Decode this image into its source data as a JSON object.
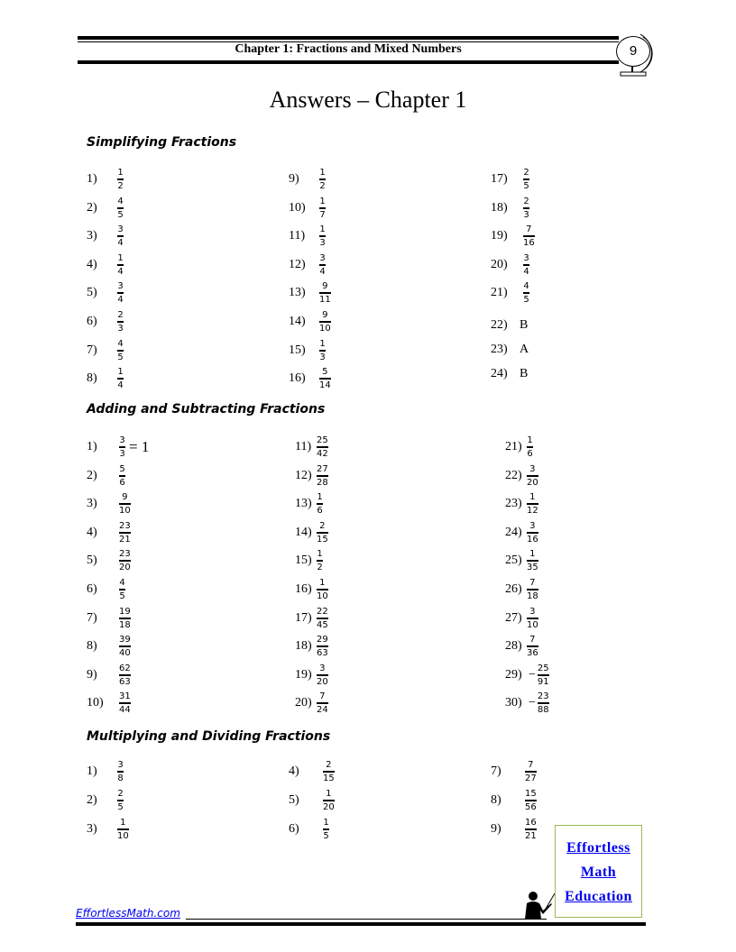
{
  "header": {
    "chapter": "Chapter 1: Fractions and Mixed Numbers",
    "page_number": "9"
  },
  "title": "Answers – Chapter 1",
  "sections": [
    {
      "heading": "Simplifying Fractions",
      "items": [
        {
          "n": "1)",
          "num": "1",
          "den": "2"
        },
        {
          "n": "2)",
          "num": "4",
          "den": "5"
        },
        {
          "n": "3)",
          "num": "3",
          "den": "4"
        },
        {
          "n": "4)",
          "num": "1",
          "den": "4"
        },
        {
          "n": "5)",
          "num": "3",
          "den": "4"
        },
        {
          "n": "6)",
          "num": "2",
          "den": "3"
        },
        {
          "n": "7)",
          "num": "4",
          "den": "5"
        },
        {
          "n": "8)",
          "num": "1",
          "den": "4"
        },
        {
          "n": "9)",
          "num": "1",
          "den": "2"
        },
        {
          "n": "10)",
          "num": "1",
          "den": "7"
        },
        {
          "n": "11)",
          "num": "1",
          "den": "3"
        },
        {
          "n": "12)",
          "num": "3",
          "den": "4"
        },
        {
          "n": "13)",
          "num": "9",
          "den": "11"
        },
        {
          "n": "14)",
          "num": "9",
          "den": "10"
        },
        {
          "n": "15)",
          "num": "1",
          "den": "3"
        },
        {
          "n": "16)",
          "num": "5",
          "den": "14"
        },
        {
          "n": "17)",
          "num": "2",
          "den": "5"
        },
        {
          "n": "18)",
          "num": "2",
          "den": "3"
        },
        {
          "n": "19)",
          "num": "7",
          "den": "16"
        },
        {
          "n": "20)",
          "num": "3",
          "den": "4"
        },
        {
          "n": "21)",
          "num": "4",
          "den": "5"
        },
        {
          "n": "22)",
          "text": "B"
        },
        {
          "n": "23)",
          "text": "A"
        },
        {
          "n": "24)",
          "text": "B"
        }
      ]
    },
    {
      "heading": "Adding and Subtracting Fractions",
      "items": [
        {
          "n": "1)",
          "num": "3",
          "den": "3",
          "suffix": "= 1"
        },
        {
          "n": "2)",
          "num": "5",
          "den": "6"
        },
        {
          "n": "3)",
          "num": "9",
          "den": "10"
        },
        {
          "n": "4)",
          "num": "23",
          "den": "21"
        },
        {
          "n": "5)",
          "num": "23",
          "den": "20"
        },
        {
          "n": "6)",
          "num": "4",
          "den": "5"
        },
        {
          "n": "7)",
          "num": "19",
          "den": "18"
        },
        {
          "n": "8)",
          "num": "39",
          "den": "40"
        },
        {
          "n": "9)",
          "num": "62",
          "den": "63"
        },
        {
          "n": "10)",
          "num": "31",
          "den": "44"
        },
        {
          "n": "11)",
          "num": "25",
          "den": "42"
        },
        {
          "n": "12)",
          "num": "27",
          "den": "28"
        },
        {
          "n": "13)",
          "num": "1",
          "den": "6"
        },
        {
          "n": "14)",
          "num": "2",
          "den": "15"
        },
        {
          "n": "15)",
          "num": "1",
          "den": "2"
        },
        {
          "n": "16)",
          "num": "1",
          "den": "10"
        },
        {
          "n": "17)",
          "num": "22",
          "den": "45"
        },
        {
          "n": "18)",
          "num": "29",
          "den": "63"
        },
        {
          "n": "19)",
          "num": "3",
          "den": "20"
        },
        {
          "n": "20)",
          "num": "7",
          "den": "24"
        },
        {
          "n": "21)",
          "num": "1",
          "den": "6"
        },
        {
          "n": "22)",
          "num": "3",
          "den": "20"
        },
        {
          "n": "23)",
          "num": "1",
          "den": "12"
        },
        {
          "n": "24)",
          "num": "3",
          "den": "16"
        },
        {
          "n": "25)",
          "num": "1",
          "den": "35"
        },
        {
          "n": "26)",
          "num": "7",
          "den": "18"
        },
        {
          "n": "27)",
          "num": "3",
          "den": "10"
        },
        {
          "n": "28)",
          "num": "7",
          "den": "36"
        },
        {
          "n": "29)",
          "neg": "−",
          "num": "25",
          "den": "91"
        },
        {
          "n": "30)",
          "neg": "−",
          "num": "23",
          "den": "88"
        }
      ]
    },
    {
      "heading": "Multiplying and Dividing Fractions",
      "items": [
        {
          "n": "1)",
          "num": "3",
          "den": "8"
        },
        {
          "n": "2)",
          "num": "2",
          "den": "5"
        },
        {
          "n": "3)",
          "num": "1",
          "den": "10"
        },
        {
          "n": "4)",
          "num": "2",
          "den": "15"
        },
        {
          "n": "5)",
          "num": "1",
          "den": "20"
        },
        {
          "n": "6)",
          "num": "1",
          "den": "5"
        },
        {
          "n": "7)",
          "num": "7",
          "den": "27"
        },
        {
          "n": "8)",
          "num": "15",
          "den": "56"
        },
        {
          "n": "9)",
          "num": "16",
          "den": "21"
        }
      ]
    }
  ],
  "logo": {
    "line1": "Effortless",
    "line2": "Math",
    "line3": "Education"
  },
  "footer": {
    "site": "EffortlessMath.com"
  }
}
